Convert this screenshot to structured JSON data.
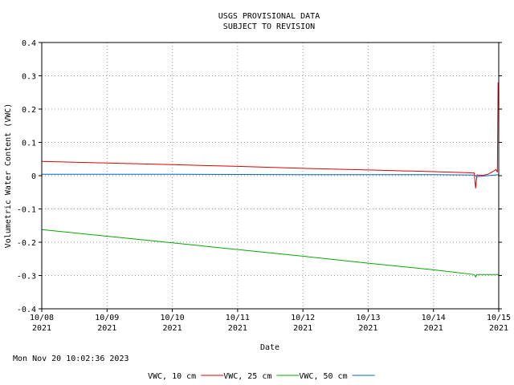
{
  "chart_data": {
    "type": "line",
    "title": "USGS PROVISIONAL DATA",
    "subtitle": "SUBJECT TO REVISION",
    "xlabel": "Date",
    "ylabel": "Volumetric Water Content (VWC)",
    "ylim": [
      -0.4,
      0.4
    ],
    "yticks": [
      "0.4",
      "0.3",
      "0.2",
      "0.1",
      "0",
      "-0.1",
      "-0.2",
      "-0.3",
      "-0.4"
    ],
    "xlim": [
      "2021-10-08 00:00",
      "2021-10-15 00:00"
    ],
    "xticks": [
      {
        "date": "10/08",
        "year": "2021"
      },
      {
        "date": "10/09",
        "year": "2021"
      },
      {
        "date": "10/10",
        "year": "2021"
      },
      {
        "date": "10/11",
        "year": "2021"
      },
      {
        "date": "10/12",
        "year": "2021"
      },
      {
        "date": "10/13",
        "year": "2021"
      },
      {
        "date": "10/14",
        "year": "2021"
      },
      {
        "date": "10/15",
        "year": "2021"
      }
    ],
    "grid": true,
    "legend_position": "bottom",
    "series": [
      {
        "name": "VWC, 10 cm",
        "color": "#dd0000",
        "points": [
          [
            "2021-10-08 00:00",
            0.043
          ],
          [
            "2021-10-09 00:00",
            0.038
          ],
          [
            "2021-10-10 00:00",
            0.033
          ],
          [
            "2021-10-11 00:00",
            0.028
          ],
          [
            "2021-10-12 00:00",
            0.022
          ],
          [
            "2021-10-13 00:00",
            0.017
          ],
          [
            "2021-10-14 00:00",
            0.012
          ],
          [
            "2021-10-14 12:00",
            0.009
          ],
          [
            "2021-10-14 15:00",
            0.008
          ],
          [
            "2021-10-14 15:30",
            -0.038
          ],
          [
            "2021-10-14 16:00",
            0.002
          ],
          [
            "2021-10-14 18:00",
            0.001
          ],
          [
            "2021-10-14 20:00",
            0.004
          ],
          [
            "2021-10-14 22:00",
            0.013
          ],
          [
            "2021-10-14 23:00",
            0.018
          ],
          [
            "2021-10-14 23:30",
            0.01
          ],
          [
            "2021-10-14 23:45",
            0.28
          ]
        ]
      },
      {
        "name": "VWC, 25 cm",
        "color": "#00aa00",
        "points": [
          [
            "2021-10-08 00:00",
            -0.162
          ],
          [
            "2021-10-09 00:00",
            -0.182
          ],
          [
            "2021-10-10 00:00",
            -0.202
          ],
          [
            "2021-10-11 00:00",
            -0.222
          ],
          [
            "2021-10-12 00:00",
            -0.242
          ],
          [
            "2021-10-13 00:00",
            -0.263
          ],
          [
            "2021-10-14 00:00",
            -0.283
          ],
          [
            "2021-10-14 15:00",
            -0.297
          ],
          [
            "2021-10-14 15:30",
            -0.304
          ],
          [
            "2021-10-14 16:00",
            -0.297
          ],
          [
            "2021-10-15 00:00",
            -0.297
          ]
        ]
      },
      {
        "name": "VWC, 50 cm",
        "color": "#0066cc",
        "points": [
          [
            "2021-10-08 00:00",
            0.004
          ],
          [
            "2021-10-10 00:00",
            0.004
          ],
          [
            "2021-10-12 00:00",
            0.003
          ],
          [
            "2021-10-14 00:00",
            0.003
          ],
          [
            "2021-10-14 15:00",
            0.002
          ],
          [
            "2021-10-14 16:00",
            -0.003
          ],
          [
            "2021-10-14 20:00",
            0.0
          ],
          [
            "2021-10-15 00:00",
            0.003
          ]
        ]
      }
    ]
  },
  "footer": {
    "timestamp": "Mon Nov 20 10:02:36 2023"
  }
}
